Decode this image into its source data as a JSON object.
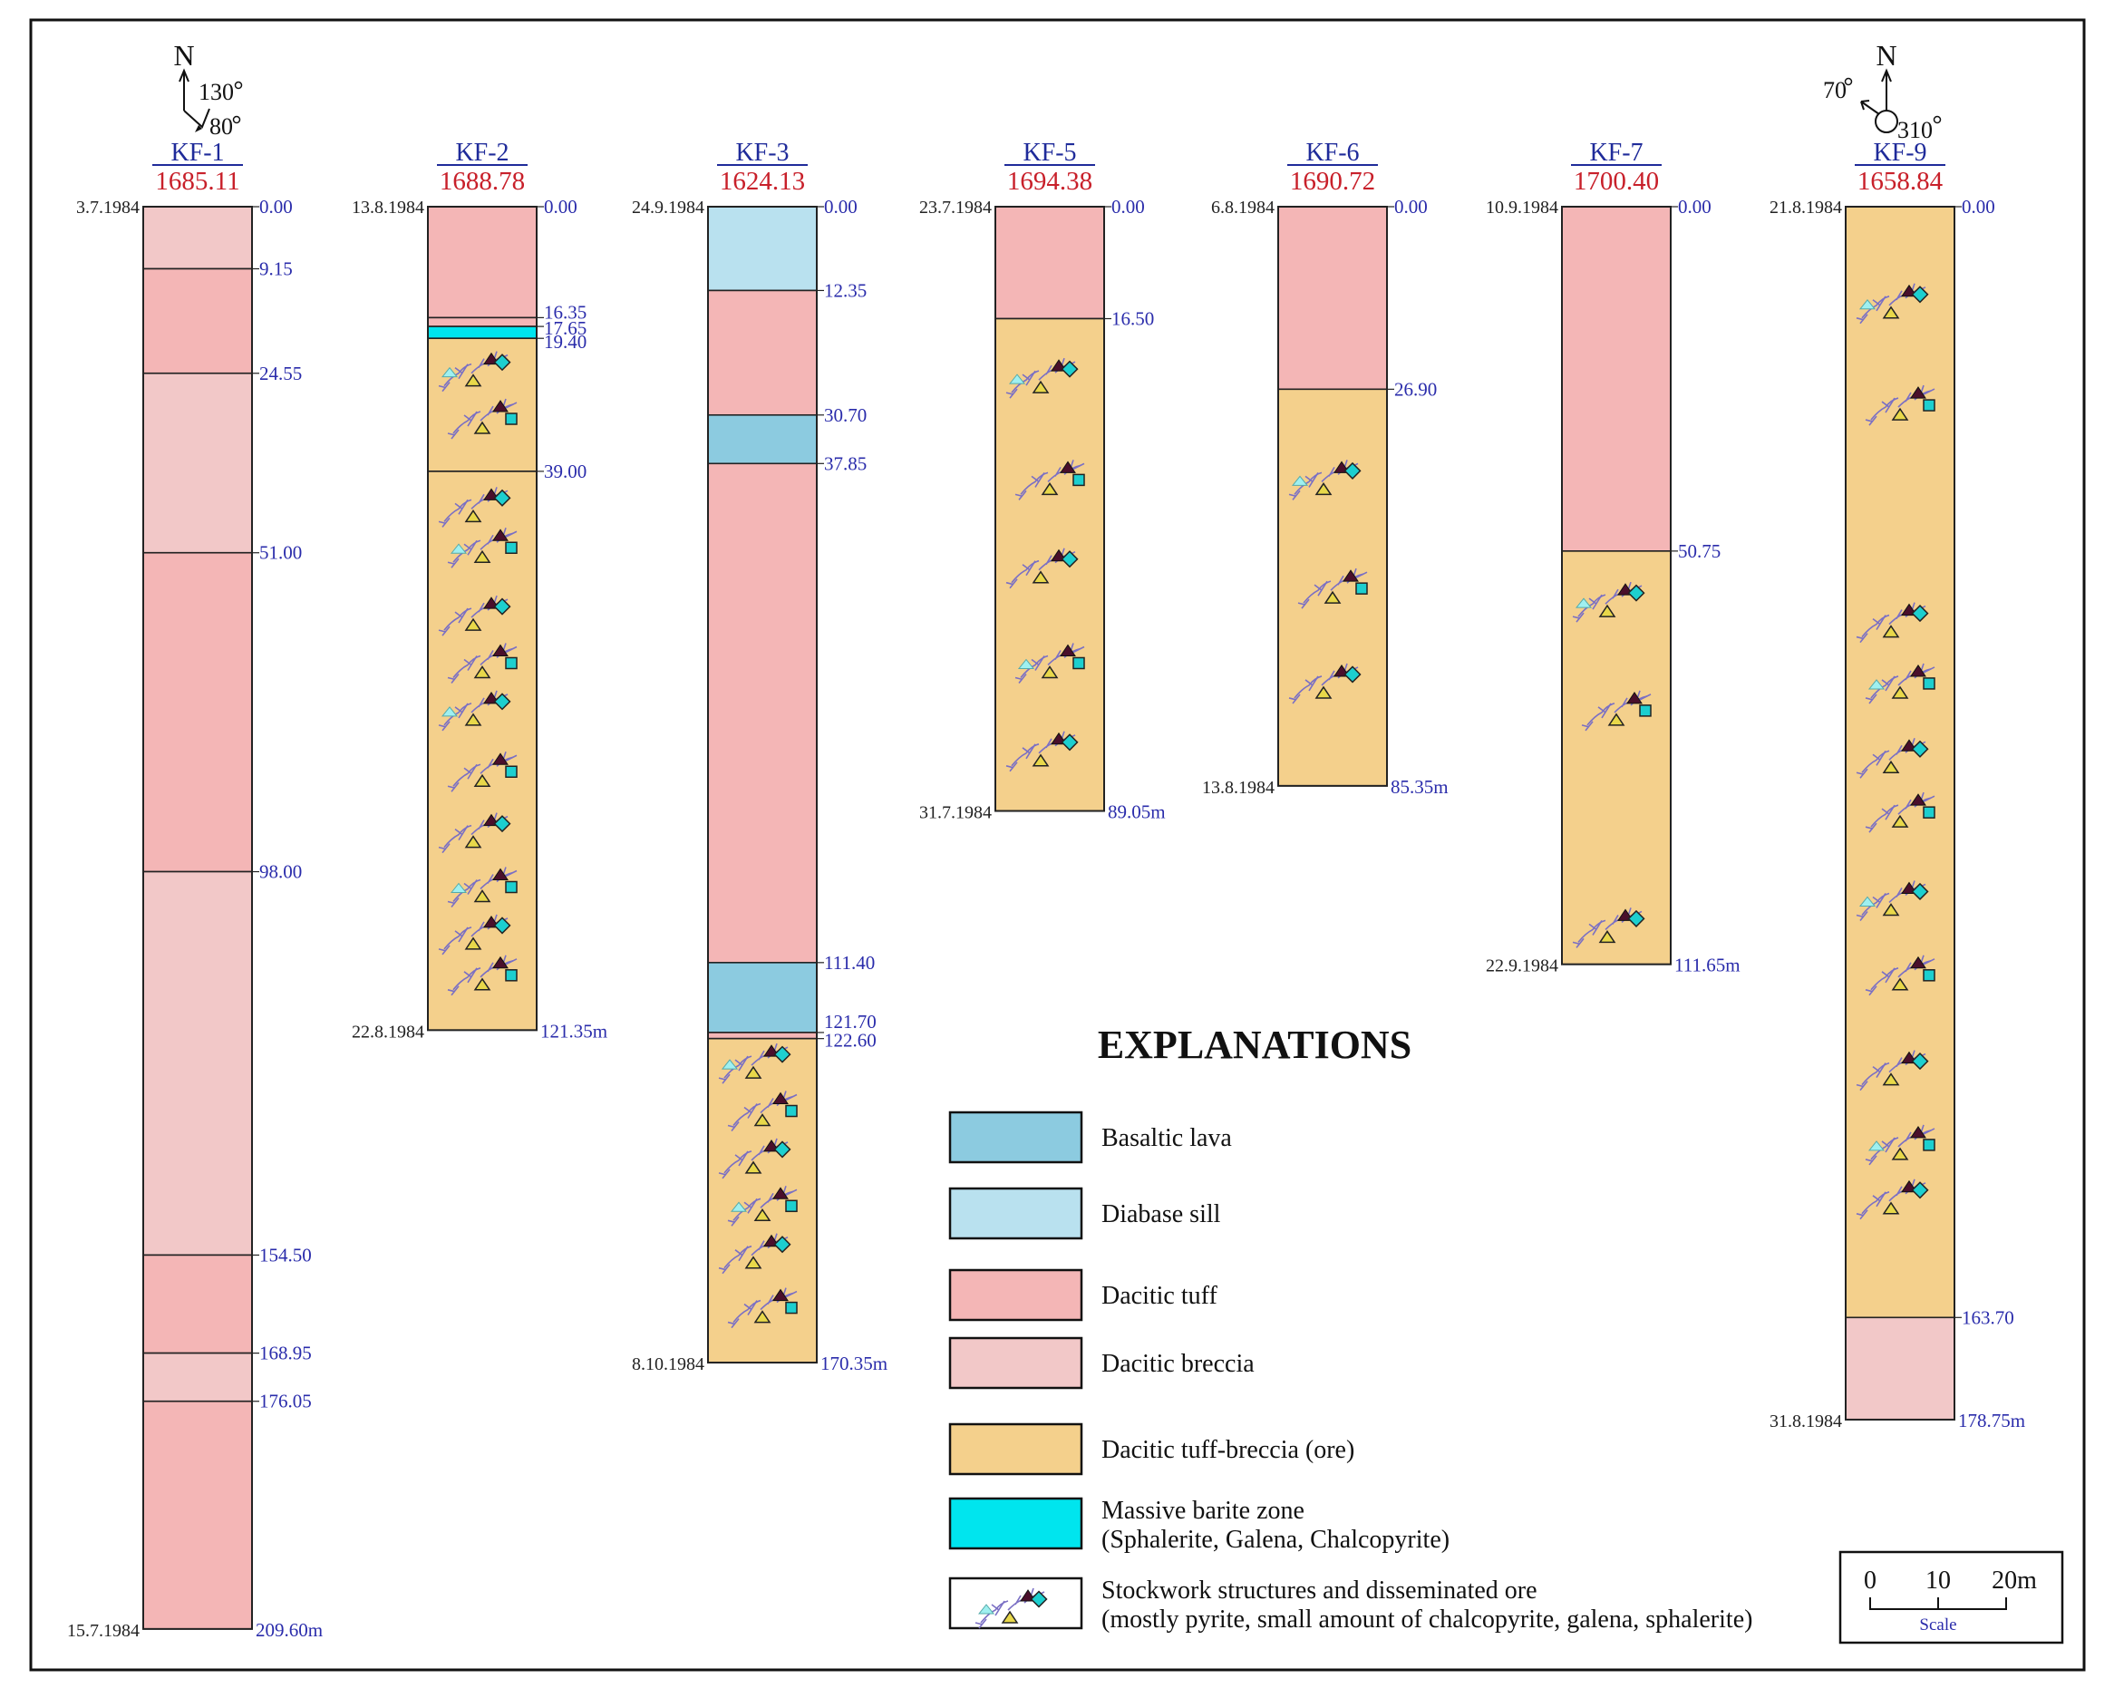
{
  "colors": {
    "basaltic_lava": "#8ccbe0",
    "diabase_sill": "#b9e1ef",
    "dacitic_tuff": "#f4b6b6",
    "dacitic_breccia": "#f2c8c8",
    "dacitic_tuff_breccia_ore": "#f4d08c",
    "massive_barite_zone": "#00e5ee",
    "stockwork_vein": "#7a6fc4",
    "pyrite_tri": "#4a0f2b",
    "chalcopyrite_tri": "#e8d84a",
    "galena_tri": "#9ff0f0",
    "sphalerite_sq": "#1dcfcf",
    "hole_name": "#1f2b9a",
    "elevation": "#c8202a",
    "depth": "#2a2cab"
  },
  "boreholes": [
    {
      "name": "KF-1",
      "elevation": "1685.11",
      "start_date": "3.7.1984",
      "end_date": "15.7.1984",
      "total_depth": 209.6,
      "total_label": "209.60m",
      "layers": [
        {
          "from": 0,
          "to": 9.15,
          "type": "dacitic_breccia"
        },
        {
          "from": 9.15,
          "to": 24.55,
          "type": "dacitic_tuff"
        },
        {
          "from": 24.55,
          "to": 51.0,
          "type": "dacitic_breccia"
        },
        {
          "from": 51.0,
          "to": 98.0,
          "type": "dacitic_tuff"
        },
        {
          "from": 98.0,
          "to": 154.5,
          "type": "dacitic_breccia"
        },
        {
          "from": 154.5,
          "to": 168.95,
          "type": "dacitic_tuff"
        },
        {
          "from": 168.95,
          "to": 176.05,
          "type": "dacitic_breccia"
        },
        {
          "from": 176.05,
          "to": 209.6,
          "type": "dacitic_tuff"
        }
      ],
      "depth_labels": [
        "0.00",
        "9.15",
        "24.55",
        "51.00",
        "98.00",
        "154.50",
        "168.95",
        "176.05"
      ],
      "ore_marks": [],
      "north": {
        "angle_a": "130",
        "angle_b": "80"
      }
    },
    {
      "name": "KF-2",
      "elevation": "1688.78",
      "start_date": "13.8.1984",
      "end_date": "22.8.1984",
      "total_depth": 121.35,
      "total_label": "121.35m",
      "layers": [
        {
          "from": 0,
          "to": 16.35,
          "type": "dacitic_tuff"
        },
        {
          "from": 16.35,
          "to": 17.65,
          "type": "dacitic_tuff"
        },
        {
          "from": 17.65,
          "to": 19.4,
          "type": "massive_barite_zone"
        },
        {
          "from": 19.4,
          "to": 39.0,
          "type": "dacitic_tuff_breccia_ore"
        },
        {
          "from": 39.0,
          "to": 121.35,
          "type": "dacitic_tuff_breccia_ore"
        }
      ],
      "depth_labels": [
        "0.00",
        "16.35",
        "17.65",
        "19.40",
        "39.00"
      ],
      "ore_marks": [
        24,
        31,
        44,
        50,
        60,
        67,
        74,
        83,
        92,
        100,
        107,
        113
      ]
    },
    {
      "name": "KF-3",
      "elevation": "1624.13",
      "start_date": "24.9.1984",
      "end_date": "8.10.1984",
      "total_depth": 170.35,
      "total_label": "170.35m",
      "layers": [
        {
          "from": 0,
          "to": 12.35,
          "type": "diabase_sill"
        },
        {
          "from": 12.35,
          "to": 30.7,
          "type": "dacitic_tuff"
        },
        {
          "from": 30.7,
          "to": 37.85,
          "type": "basaltic_lava"
        },
        {
          "from": 37.85,
          "to": 111.4,
          "type": "dacitic_tuff"
        },
        {
          "from": 111.4,
          "to": 121.7,
          "type": "basaltic_lava"
        },
        {
          "from": 121.7,
          "to": 122.6,
          "type": "dacitic_tuff"
        },
        {
          "from": 122.6,
          "to": 170.35,
          "type": "dacitic_tuff_breccia_ore"
        }
      ],
      "depth_labels": [
        "0.00",
        "12.35",
        "30.70",
        "37.85",
        "111.40",
        "121.70",
        "122.60"
      ],
      "ore_marks": [
        126,
        133,
        140,
        147,
        154,
        162
      ]
    },
    {
      "name": "KF-5",
      "elevation": "1694.38",
      "start_date": "23.7.1984",
      "end_date": "31.7.1984",
      "total_depth": 89.05,
      "total_label": "89.05m",
      "layers": [
        {
          "from": 0,
          "to": 16.5,
          "type": "dacitic_tuff"
        },
        {
          "from": 16.5,
          "to": 89.05,
          "type": "dacitic_tuff_breccia_ore"
        }
      ],
      "depth_labels": [
        "0.00",
        "16.50"
      ],
      "ore_marks": [
        25,
        40,
        53,
        67,
        80
      ]
    },
    {
      "name": "KF-6",
      "elevation": "1690.72",
      "start_date": "6.8.1984",
      "end_date": "13.8.1984",
      "total_depth": 85.35,
      "total_label": "85.35m",
      "layers": [
        {
          "from": 0,
          "to": 26.9,
          "type": "dacitic_tuff"
        },
        {
          "from": 26.9,
          "to": 85.35,
          "type": "dacitic_tuff_breccia_ore"
        }
      ],
      "depth_labels": [
        "0.00",
        "26.90"
      ],
      "ore_marks": [
        40,
        56,
        70
      ]
    },
    {
      "name": "KF-7",
      "elevation": "1700.40",
      "start_date": "10.9.1984",
      "end_date": "22.9.1984",
      "total_depth": 111.65,
      "total_label": "111.65m",
      "layers": [
        {
          "from": 0,
          "to": 50.75,
          "type": "dacitic_tuff"
        },
        {
          "from": 50.75,
          "to": 111.65,
          "type": "dacitic_tuff_breccia_ore"
        }
      ],
      "depth_labels": [
        "0.00",
        "50.75"
      ],
      "ore_marks": [
        58,
        74,
        106
      ]
    },
    {
      "name": "KF-9",
      "elevation": "1658.84",
      "start_date": "21.8.1984",
      "end_date": "31.8.1984",
      "total_depth": 178.75,
      "total_label": "178.75m",
      "layers": [
        {
          "from": 0,
          "to": 163.7,
          "type": "dacitic_tuff_breccia_ore"
        },
        {
          "from": 163.7,
          "to": 178.75,
          "type": "dacitic_breccia"
        }
      ],
      "depth_labels": [
        "0.00",
        "163.70"
      ],
      "ore_marks": [
        14,
        29,
        61,
        70,
        81,
        89,
        102,
        113,
        127,
        138,
        146
      ],
      "north": {
        "angle_a": "70",
        "angle_b": "310"
      }
    }
  ],
  "legend": {
    "title": "EXPLANATIONS",
    "items": [
      {
        "key": "basaltic_lava",
        "label": "Basaltic lava"
      },
      {
        "key": "diabase_sill",
        "label": "Diabase sill"
      },
      {
        "key": "dacitic_tuff",
        "label": "Dacitic tuff"
      },
      {
        "key": "dacitic_breccia",
        "label": "Dacitic breccia"
      },
      {
        "key": "dacitic_tuff_breccia_ore",
        "label": "Dacitic tuff-breccia (ore)"
      },
      {
        "key": "massive_barite_zone",
        "label": "Massive barite zone",
        "label2": "(Sphalerite, Galena, Chalcopyrite)"
      },
      {
        "key": "stockwork",
        "label": "Stockwork structures and disseminated ore",
        "label2": "(mostly pyrite, small amount of chalcopyrite, galena, sphalerite)"
      }
    ]
  },
  "scale": {
    "ticks": [
      "0",
      "10",
      "20m"
    ],
    "caption": "Scale"
  },
  "north_label": "N"
}
